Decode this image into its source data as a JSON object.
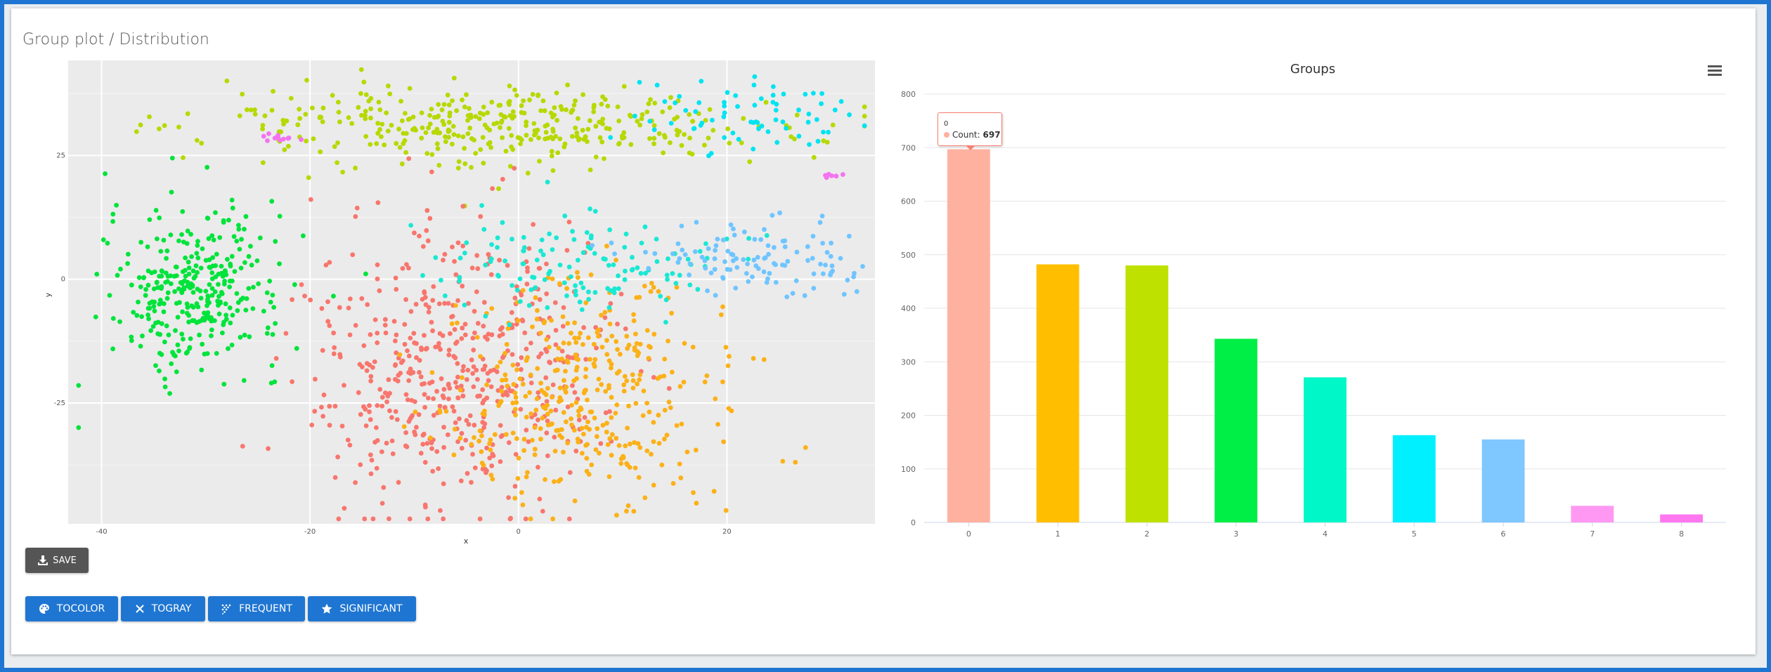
{
  "panel": {
    "title": "Group plot / Distribution"
  },
  "scatter": {
    "xlabel": "x",
    "ylabel": "y",
    "x_ticks": [
      "-40",
      "-20",
      "0",
      "20"
    ],
    "x_tick_values": [
      -40,
      -20,
      0,
      20
    ],
    "y_ticks": [
      "25",
      "0",
      "-25"
    ],
    "y_tick_values": [
      25,
      0,
      -25
    ],
    "xlim": [
      -43.2,
      34.2
    ],
    "ylim": [
      -49.4,
      44.2
    ],
    "groups": [
      {
        "name": "0",
        "color": "#f8766d"
      },
      {
        "name": "1",
        "color": "#fbb117"
      },
      {
        "name": "2",
        "color": "#b7d800"
      },
      {
        "name": "3",
        "color": "#00e33b"
      },
      {
        "name": "4",
        "color": "#19e8d3"
      },
      {
        "name": "5",
        "color": "#00e3f0"
      },
      {
        "name": "6",
        "color": "#6fc5ff"
      },
      {
        "name": "7",
        "color": "#f473f0"
      }
    ],
    "clusters": [
      {
        "group": 3,
        "cx": -31,
        "cy": -2,
        "sx": 4.2,
        "sy": 8,
        "n": 330
      },
      {
        "group": 2,
        "cx": -2,
        "cy": 31,
        "sx": 14,
        "sy": 4,
        "n": 380
      },
      {
        "group": 5,
        "cx": 21,
        "cy": 33,
        "sx": 5,
        "sy": 4,
        "n": 70
      },
      {
        "group": 0,
        "cx": -6,
        "cy": -18,
        "sx": 7,
        "sy": 14,
        "n": 520
      },
      {
        "group": 1,
        "cx": 7,
        "cy": -23,
        "sx": 7,
        "sy": 11,
        "n": 380
      },
      {
        "group": 4,
        "cx": 6,
        "cy": 3,
        "sx": 7,
        "sy": 5,
        "n": 130
      },
      {
        "group": 6,
        "cx": 23,
        "cy": 4,
        "sx": 5,
        "sy": 3.5,
        "n": 110
      },
      {
        "group": 7,
        "cx": -23,
        "cy": 28.5,
        "sx": 1,
        "sy": 0.4,
        "n": 12
      },
      {
        "group": 7,
        "cx": 30,
        "cy": 21,
        "sx": 1,
        "sy": 0.3,
        "n": 8
      }
    ]
  },
  "chart_data": {
    "type": "bar",
    "title": "Groups",
    "categories": [
      "0",
      "1",
      "2",
      "3",
      "4",
      "5",
      "6",
      "7",
      "8"
    ],
    "values": [
      697,
      482,
      480,
      343,
      271,
      163,
      155,
      31,
      15
    ],
    "colors": [
      "#ffb1a0",
      "#ffbf00",
      "#bfe100",
      "#00ef46",
      "#00f7c8",
      "#00f0ff",
      "#7ec7ff",
      "#ff98f3",
      "#ff77ef"
    ],
    "y_ticks": [
      "0",
      "100",
      "200",
      "300",
      "400",
      "500",
      "600",
      "700",
      "800"
    ],
    "ylim": [
      0,
      800
    ],
    "tooltip": {
      "category": "0",
      "label": "Count",
      "value": "697"
    }
  },
  "menu": {
    "icon": "hamburger-menu-icon"
  },
  "buttons": {
    "save": {
      "label": "SAVE",
      "icon": "download-icon"
    },
    "tocolor": {
      "label": "TOCOLOR",
      "icon": "palette-icon"
    },
    "togray": {
      "label": "TOGRAY",
      "icon": "close-icon"
    },
    "frequent": {
      "label": "FREQUENT",
      "icon": "dots-grid-icon"
    },
    "significant": {
      "label": "SIGNIFICANT",
      "icon": "star-icon"
    }
  },
  "colors": {
    "accent": "#1f76d2",
    "save_button": "#555555",
    "plot_bg": "#ebebeb"
  }
}
